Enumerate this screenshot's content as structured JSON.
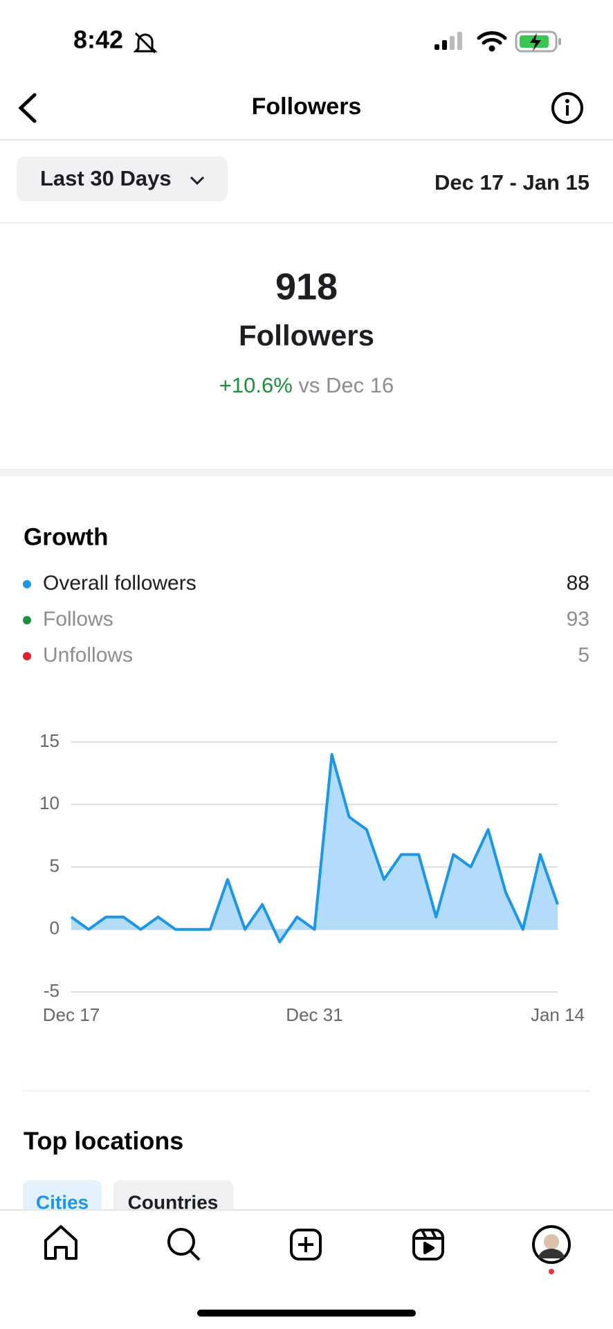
{
  "status_bar": {
    "time": "8:42"
  },
  "header": {
    "title": "Followers"
  },
  "period": {
    "label": "Last 30 Days",
    "range": "Dec 17 - Jan 15"
  },
  "summary": {
    "value": "918",
    "label": "Followers",
    "change": "+10.6%",
    "comparison": "vs Dec 16"
  },
  "growth": {
    "title": "Growth",
    "items": [
      {
        "name": "Overall followers",
        "value": "88",
        "color": "#1c96e8"
      },
      {
        "name": "Follows",
        "value": "93",
        "color": "#1a8f3c"
      },
      {
        "name": "Unfollows",
        "value": "5",
        "color": "#e0202c"
      }
    ]
  },
  "chart_data": {
    "type": "line",
    "categories": [
      "Dec 17",
      null,
      null,
      null,
      null,
      null,
      null,
      null,
      null,
      null,
      null,
      null,
      null,
      null,
      "Dec 31",
      null,
      null,
      null,
      null,
      null,
      null,
      null,
      null,
      null,
      null,
      null,
      null,
      null,
      "Jan 14"
    ],
    "series": [
      {
        "name": "Overall followers",
        "color": "#1c96e8",
        "values": [
          1,
          0,
          1,
          1,
          0,
          1,
          0,
          0,
          0,
          4,
          0,
          2,
          -1,
          1,
          0,
          14,
          9,
          8,
          4,
          6,
          6,
          1,
          6,
          5,
          8,
          3,
          0,
          6,
          2
        ]
      }
    ],
    "fill": "#b3dbfa",
    "ylim": [
      -5,
      15
    ],
    "yticks": [
      -5,
      0,
      5,
      10,
      15
    ],
    "grid": true
  },
  "locations": {
    "title": "Top locations",
    "tabs": [
      "Cities",
      "Countries"
    ]
  }
}
